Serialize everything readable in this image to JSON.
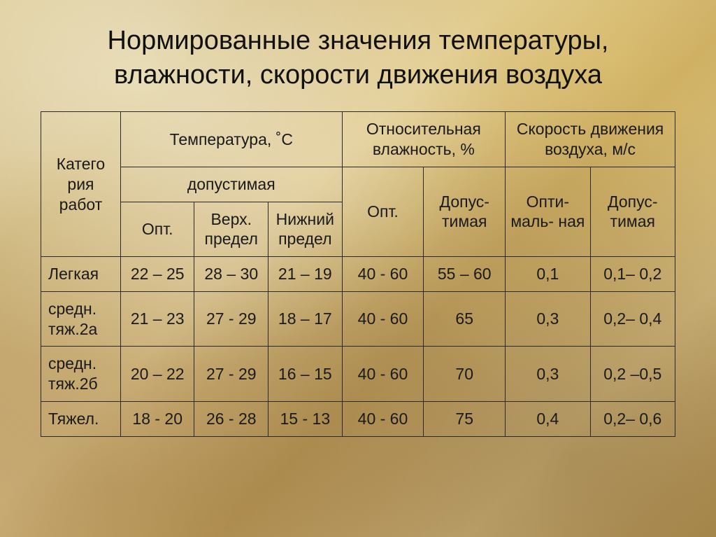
{
  "title": "Нормированные значения температуры, влажности, скорости движения воздуха",
  "table": {
    "type": "table",
    "border_color": "#2a2a2a",
    "text_color": "#1a1a1a",
    "background_color": "transparent",
    "cell_fontsize": 23,
    "title_fontsize": 38,
    "header": {
      "category": "Катего\nрия работ",
      "temperature": "Температура, ˚С",
      "humidity": "Относительная влажность, %",
      "airspeed": "Скорость движения воздуха, м/с",
      "permissible": "допустимая",
      "opt": "Опт.",
      "upper": "Верх. предел",
      "lower": "Нижний предел",
      "hum_opt": "Опт.",
      "hum_perm": "Допус-\nтимая",
      "spd_opt": "Опти-\nмаль-\nная",
      "spd_perm": "Допус-\nтимая"
    },
    "columns": [
      "category",
      "temp_opt",
      "temp_upper",
      "temp_lower",
      "hum_opt",
      "hum_perm",
      "spd_opt",
      "spd_perm"
    ],
    "rows": [
      {
        "label": "Легкая",
        "cells": [
          "22 – 25",
          "28 – 30",
          "21 – 19",
          "40 - 60",
          "55 – 60",
          "0,1",
          "0,1– 0,2"
        ]
      },
      {
        "label": "средн. тяж.2а",
        "cells": [
          "21 – 23",
          "27 - 29",
          "18 – 17",
          "40 - 60",
          "65",
          "0,3",
          "0,2– 0,4"
        ]
      },
      {
        "label": "средн. тяж.2б",
        "cells": [
          "20 – 22",
          "27 - 29",
          "16 – 15",
          "40 - 60",
          "70",
          "0,3",
          "0,2 –0,5"
        ]
      },
      {
        "label": "Тяжел.",
        "cells": [
          "18 - 20",
          "26 - 28",
          "15 - 13",
          "40 - 60",
          "75",
          "0,4",
          "0,2– 0,6"
        ]
      }
    ]
  }
}
